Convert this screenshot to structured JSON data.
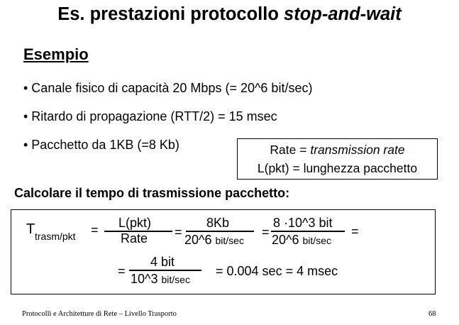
{
  "slide": {
    "title_prefix": "Es. prestazioni protocollo ",
    "title_italic": "stop-and-wait",
    "section_heading": "Esempio",
    "bullets": [
      "• Canale fisico di capacità 20 Mbps  (= 20^6 bit/sec)",
      "• Ritardo di propagazione (RTT/2) = 15 msec",
      "• Pacchetto da 1KB  (=8 Kb)"
    ],
    "definitions": {
      "line1_prefix": "Rate = ",
      "line1_italic": "transmission rate",
      "line2": "L(pkt) = lunghezza pacchetto"
    },
    "calc_heading": "Calcolare il tempo di trasmissione pacchetto:",
    "formula": {
      "t_symbol": "T",
      "t_subscript": "trasm/pkt",
      "eq": "=",
      "frac1_num": "L(pkt)",
      "frac1_den": "Rate",
      "frac2_num": "8Kb",
      "frac2_den_main": "20^6 ",
      "frac2_den_small": "bit/sec",
      "frac3_num": "8  ·10^3 bit",
      "frac3_den_main": "20^6 ",
      "frac3_den_small": "bit/sec",
      "frac4_num": "4 bit",
      "frac4_den_main": "10^3 ",
      "frac4_den_small": "bit/sec",
      "result": "= 0.004 sec = 4 msec"
    },
    "footer_left": "Protocolli e Architetture di Rete – Livello Trasporto",
    "page_number": "68"
  }
}
